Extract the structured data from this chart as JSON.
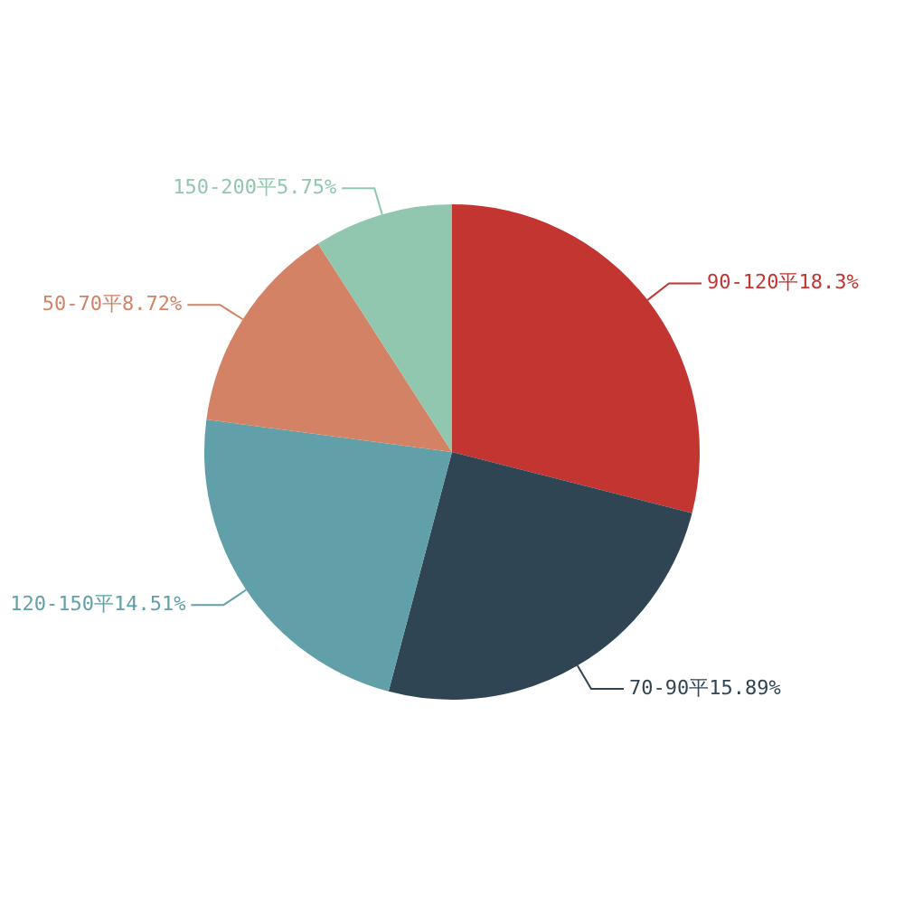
{
  "chart_data": {
    "type": "pie",
    "categories": [
      "90-120平",
      "70-90平",
      "120-150平",
      "50-70平",
      "150-200平"
    ],
    "values": [
      18.3,
      15.89,
      14.51,
      8.72,
      5.75
    ],
    "value_labels": [
      "18.3%",
      "15.89%",
      "14.51%",
      "8.72%",
      "5.75%"
    ],
    "colors": [
      "#c23531",
      "#2f4554",
      "#61a0a8",
      "#d48265",
      "#91c7ae"
    ],
    "legend": false
  }
}
